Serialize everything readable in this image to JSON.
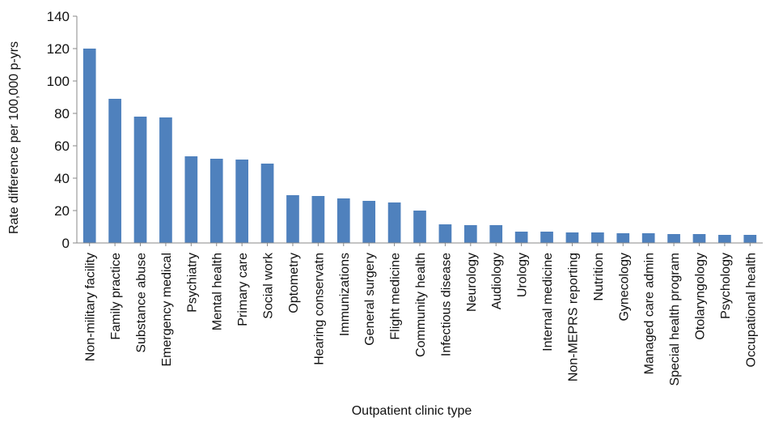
{
  "chart_data": {
    "type": "bar",
    "title": "",
    "xlabel": "Outpatient clinic type",
    "ylabel": "Rate difference per 100,000 p-yrs",
    "ylim": [
      0,
      140
    ],
    "yticks": [
      0,
      20,
      40,
      60,
      80,
      100,
      120,
      140
    ],
    "grid": false,
    "legend": "none",
    "bar_color": "#4F81BD",
    "categories": [
      "Non-military facility",
      "Family practice",
      "Substance abuse",
      "Emergency medical",
      "Psychiatry",
      "Mental health",
      "Primary care",
      "Social work",
      "Optometry",
      "Hearing conservatn",
      "Immunizations",
      "General surgery",
      "Flight medicine",
      "Community health",
      "Infectious disease",
      "Neurology",
      "Audiology",
      "Urology",
      "Internal medicine",
      "Non-MEPRS reporting",
      "Nutrition",
      "Gynecology",
      "Managed care admin",
      "Special health program",
      "Otolaryngology",
      "Psychology",
      "Occupational health"
    ],
    "values": [
      120,
      89,
      78,
      77.5,
      53.5,
      52,
      51.5,
      49,
      29.5,
      29,
      27.5,
      26,
      25,
      20,
      11.5,
      11,
      11,
      7,
      7,
      6.5,
      6.5,
      6,
      6,
      5.5,
      5.5,
      5,
      5
    ]
  }
}
